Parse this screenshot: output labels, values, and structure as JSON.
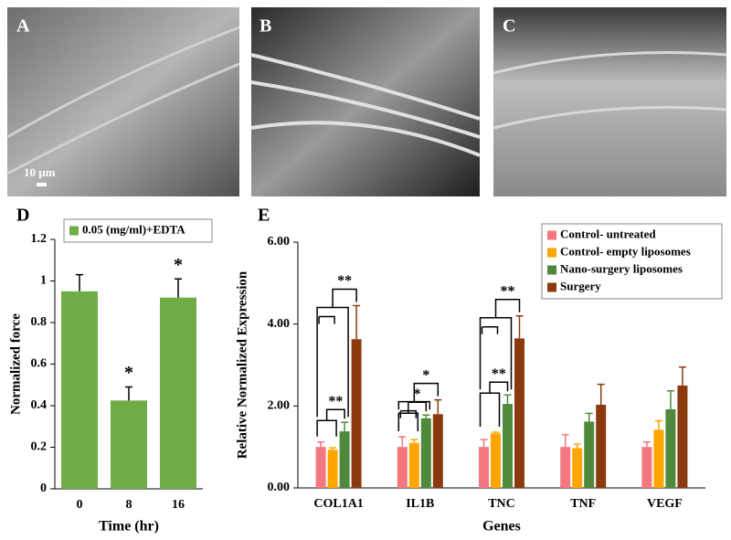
{
  "images": [
    {
      "label": "A",
      "scale_bar": "10 μm"
    },
    {
      "label": "B"
    },
    {
      "label": "C"
    }
  ],
  "chart_data": [
    {
      "type": "bar",
      "panel_label": "D",
      "ylabel": "Normalized force",
      "xlabel": "Time (hr)",
      "categories": [
        "0",
        "8",
        "16"
      ],
      "series": [
        {
          "name": "0.05 (mg/ml)+EDTA",
          "color": "#70ad47",
          "values": [
            0.95,
            0.425,
            0.92
          ],
          "errors": [
            0.08,
            0.065,
            0.09
          ]
        }
      ],
      "significance": [
        null,
        "*",
        "*"
      ],
      "ylim": [
        0,
        1.2
      ],
      "yticks": [
        0,
        0.2,
        0.4,
        0.6,
        0.8,
        1,
        1.2
      ],
      "legend": "upper-left"
    },
    {
      "type": "bar",
      "panel_label": "E",
      "ylabel": "Relative Normalized Expression",
      "xlabel": "Genes",
      "categories": [
        "COL1A1",
        "IL1B",
        "TNC",
        "TNF",
        "VEGF"
      ],
      "series": [
        {
          "name": "Control- untreated",
          "color": "#f4777f",
          "values": [
            1.0,
            1.0,
            1.0,
            1.0,
            1.0
          ],
          "errors": [
            0.12,
            0.25,
            0.18,
            0.3,
            0.12
          ]
        },
        {
          "name": "Control- empty liposomes",
          "color": "#ffa500",
          "values": [
            0.93,
            1.1,
            1.33,
            0.97,
            1.42
          ],
          "errors": [
            0.05,
            0.08,
            0.03,
            0.1,
            0.22
          ]
        },
        {
          "name": "Nano-surgery liposomes",
          "color": "#4f8a3c",
          "values": [
            1.38,
            1.7,
            2.05,
            1.62,
            1.92
          ],
          "errors": [
            0.22,
            0.08,
            0.22,
            0.2,
            0.45
          ]
        },
        {
          "name": "Surgery",
          "color": "#8b3a0f",
          "values": [
            3.63,
            1.8,
            3.65,
            2.03,
            2.5
          ],
          "errors": [
            0.82,
            0.35,
            0.55,
            0.5,
            0.45
          ]
        }
      ],
      "comparisons": [
        {
          "category": 0,
          "from": [
            0,
            1
          ],
          "to": 2,
          "label": "**"
        },
        {
          "category": 0,
          "from": [
            0,
            1,
            2
          ],
          "to": 3,
          "label": "**"
        },
        {
          "category": 1,
          "from": [
            0,
            1
          ],
          "to": 2,
          "label": "*"
        },
        {
          "category": 1,
          "from": [
            0,
            1,
            2
          ],
          "to": 3,
          "label": "*"
        },
        {
          "category": 2,
          "from": [
            0,
            1
          ],
          "to": 2,
          "label": "**"
        },
        {
          "category": 2,
          "from": [
            0,
            1,
            2
          ],
          "to": 3,
          "label": "**"
        }
      ],
      "ylim": [
        0,
        6
      ],
      "yticks": [
        {
          "value": 0,
          "label": "0.00"
        },
        {
          "value": 2,
          "label": "2.00"
        },
        {
          "value": 4,
          "label": "4.00"
        },
        {
          "value": 6,
          "label": "6.00"
        }
      ],
      "legend": "upper-right"
    }
  ]
}
